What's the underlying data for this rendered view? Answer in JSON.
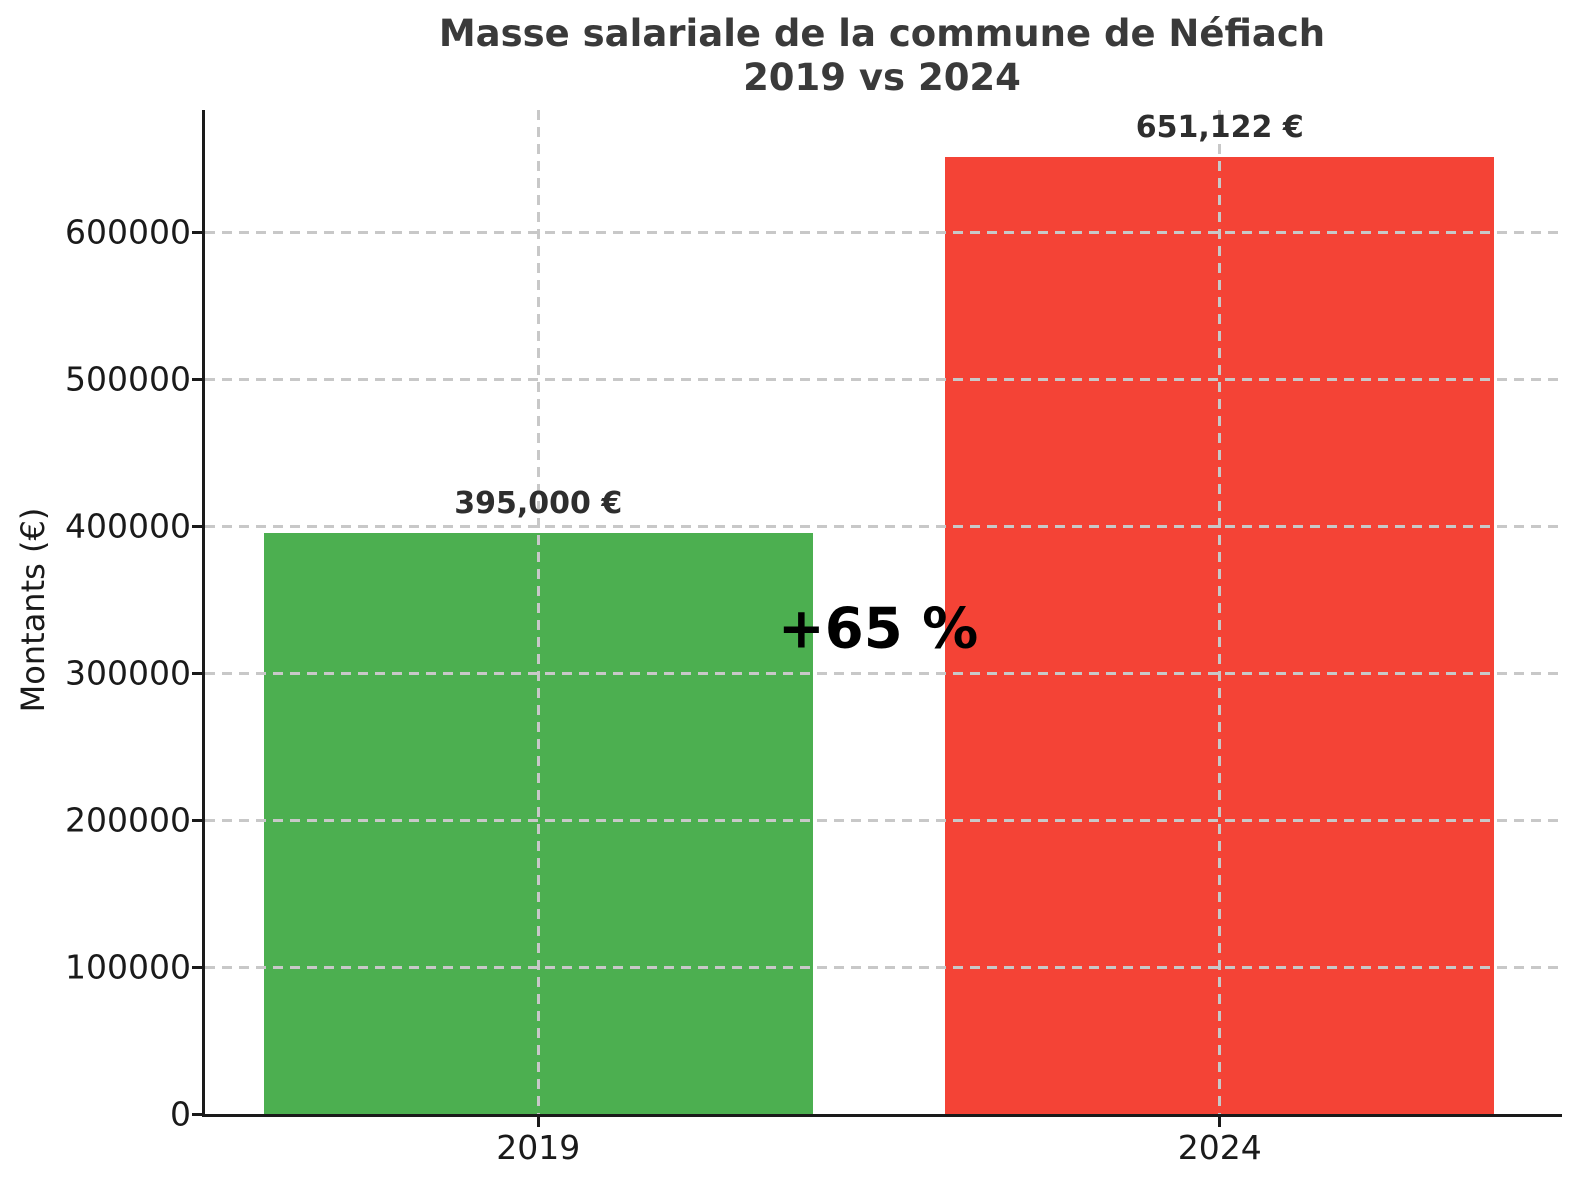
{
  "figure": {
    "background": "#ffffff"
  },
  "chart_data": {
    "type": "bar",
    "title": "Masse salariale de la commune de Néfiach",
    "subtitle": "2019 vs 2024",
    "ylabel": "Montants (€)",
    "xlabel": "",
    "categories": [
      "2019",
      "2024"
    ],
    "values": [
      395000,
      651122
    ],
    "value_labels": [
      "395,000 €",
      "651,122 €"
    ],
    "bar_colors": [
      "#4caf50",
      "#f44336"
    ],
    "ylim": [
      0,
      683000
    ],
    "yticks": [
      0,
      100000,
      200000,
      300000,
      400000,
      500000,
      600000
    ],
    "grid": {
      "style": "dashed",
      "color": "#c8c8c8",
      "horizontal": true,
      "vertical_at_categories": true
    },
    "annotation": {
      "text": "+65 %",
      "x_frac": 0.496,
      "y_value": 330000
    },
    "legend": null,
    "layout_hints": {
      "bar_centers_frac": [
        0.2456,
        0.7478
      ],
      "bar_width_frac": 0.4044
    }
  },
  "colors": {
    "axis": "#1a1a1a",
    "title": "#3a3a3a",
    "tick_label": "#1a1a1a",
    "value_label": "#2e2e2e",
    "annotation": "#000000",
    "grid": "#c8c8c8"
  }
}
